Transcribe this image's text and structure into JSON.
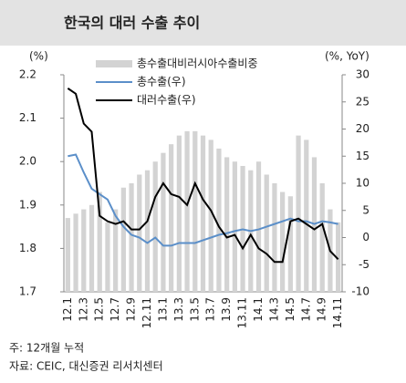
{
  "chart_data": {
    "type": "bar-line",
    "title": "한국의 대러 수출 추이",
    "y_label": "(%)",
    "y2_label": "(%, YoY)",
    "note": "주: 12개월 누적",
    "source": "자료: CEIC, 대신증권 리서치센터",
    "categories": [
      "12.1",
      null,
      "12.3",
      null,
      "12.5",
      null,
      "12.7",
      null,
      "12.9",
      null,
      "12.11",
      null,
      "13.1",
      null,
      "13.3",
      null,
      "13.5",
      null,
      "13.7",
      null,
      "13.9",
      null,
      "13.11",
      null,
      "14.1",
      null,
      "14.3",
      null,
      "14.5",
      null,
      "14.7",
      null,
      "14.9",
      null,
      "14.11"
    ],
    "series": [
      {
        "name": "총수출대비러시아수출비중",
        "type": "bar",
        "color": "#d3d3d3",
        "axis": "y",
        "values": [
          1.87,
          1.88,
          1.89,
          1.9,
          1.93,
          1.86,
          1.89,
          1.94,
          1.95,
          1.97,
          1.98,
          2.0,
          2.02,
          2.04,
          2.06,
          2.07,
          2.07,
          2.06,
          2.05,
          2.03,
          2.01,
          2.0,
          1.99,
          1.98,
          2.0,
          1.97,
          1.95,
          1.93,
          1.92,
          2.06,
          2.05,
          2.01,
          1.95,
          1.89,
          1.86
        ]
      },
      {
        "name": "총수출(우)",
        "type": "line",
        "color": "#5b8fc9",
        "axis": "y2",
        "values": [
          15,
          15.3,
          12,
          9,
          8,
          7,
          4,
          2,
          0.5,
          0,
          -1,
          0,
          -1.5,
          -1.5,
          -1,
          -1,
          -1,
          -0.5,
          0,
          0.5,
          0.8,
          1.2,
          1.5,
          1.2,
          1.5,
          2,
          2.5,
          3,
          3.5,
          3,
          3,
          2.5,
          3,
          2.8,
          2.5
        ]
      },
      {
        "name": "대러수출(우)",
        "type": "line",
        "color": "#000000",
        "axis": "y2",
        "values": [
          27.5,
          26.5,
          21,
          19.5,
          4,
          3,
          2.5,
          3,
          1.5,
          1.5,
          3,
          7.5,
          10,
          8,
          7.5,
          6,
          10,
          7,
          5,
          2,
          0,
          0.5,
          -2,
          0.5,
          -2,
          -3,
          -4.5,
          -4.5,
          3,
          3.5,
          2.5,
          1.5,
          2.5,
          -2.5,
          -4
        ]
      }
    ],
    "ylim": [
      1.7,
      2.2
    ],
    "yticks": [
      1.7,
      1.8,
      1.9,
      {
        "value": 2,
        "label": "2.0"
      },
      2.1,
      2.2
    ],
    "y2lim": [
      -10,
      30
    ],
    "y2ticks": [
      -10,
      -5,
      0,
      5,
      10,
      15,
      20,
      25,
      30
    ]
  }
}
